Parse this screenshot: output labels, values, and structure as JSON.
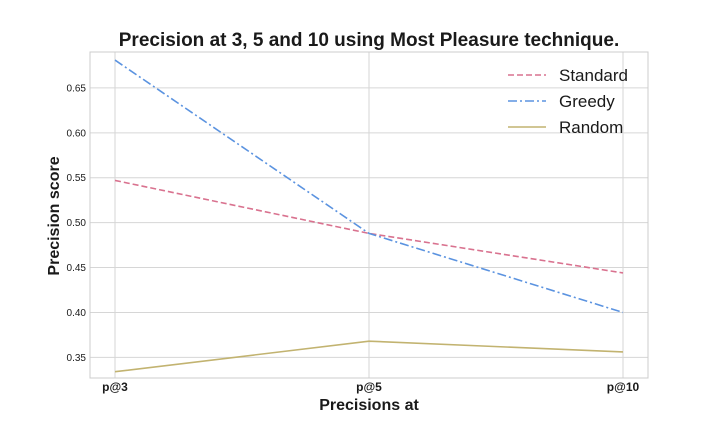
{
  "chart_data": {
    "type": "line",
    "title": "Precision at 3, 5 and 10 using Most Pleasure technique.",
    "xlabel": "Precisions at",
    "ylabel": "Precision score",
    "categories": [
      "p@3",
      "p@5",
      "p@10"
    ],
    "yticks": [
      "0.35",
      "0.40",
      "0.45",
      "0.50",
      "0.55",
      "0.60",
      "0.65"
    ],
    "ylim": [
      0.327,
      0.69
    ],
    "grid": true,
    "legend_position": "top-right",
    "series": [
      {
        "name": "Standard",
        "values": [
          0.547,
          0.488,
          0.444
        ],
        "color": "#d9728f",
        "dash": "dashed"
      },
      {
        "name": "Greedy",
        "values": [
          0.681,
          0.488,
          0.4
        ],
        "color": "#5b93e0",
        "dash": "dashdot"
      },
      {
        "name": "Random",
        "values": [
          0.334,
          0.368,
          0.356
        ],
        "color": "#c2b370",
        "dash": "solid"
      }
    ]
  }
}
